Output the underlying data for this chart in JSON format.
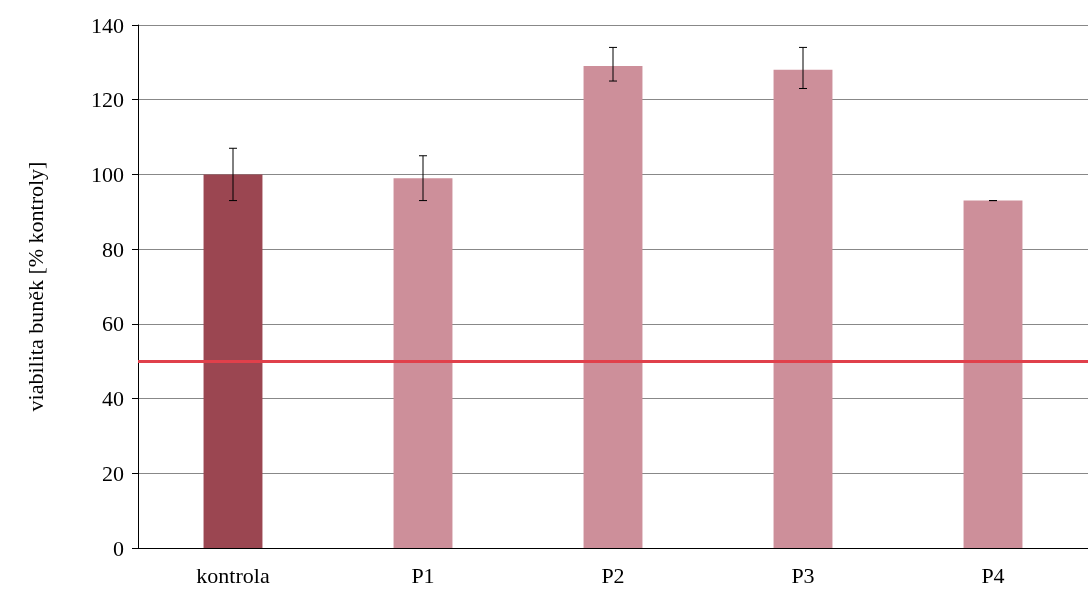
{
  "chart_data": {
    "type": "bar",
    "ylabel": "viabilita buněk [% kontroly]",
    "categories": [
      "kontrola",
      "P1",
      "P2",
      "P3",
      "P4"
    ],
    "values": [
      100,
      99,
      129,
      128,
      93
    ],
    "colors": [
      "#9b4651",
      "#cd8f9a",
      "#cd8f9a",
      "#cd8f9a",
      "#cd8f9a"
    ],
    "errors": [
      [
        93,
        107
      ],
      [
        93,
        105
      ],
      [
        125,
        134
      ],
      [
        123,
        134
      ],
      null
    ],
    "ylim": [
      0,
      140
    ],
    "yticks": [
      0,
      20,
      40,
      60,
      80,
      100,
      120,
      140
    ],
    "grid": "y",
    "ref_lines": [
      {
        "axis": "y",
        "value": 50,
        "color": "#e0404b"
      }
    ]
  }
}
